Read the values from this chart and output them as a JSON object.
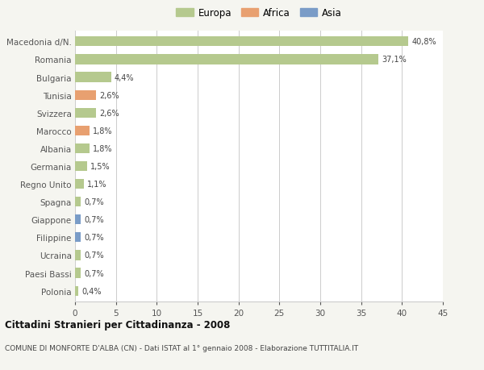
{
  "categories": [
    "Polonia",
    "Paesi Bassi",
    "Ucraina",
    "Filippine",
    "Giappone",
    "Spagna",
    "Regno Unito",
    "Germania",
    "Albania",
    "Marocco",
    "Svizzera",
    "Tunisia",
    "Bulgaria",
    "Romania",
    "Macedonia d/N."
  ],
  "values": [
    0.4,
    0.7,
    0.7,
    0.7,
    0.7,
    0.7,
    1.1,
    1.5,
    1.8,
    1.8,
    2.6,
    2.6,
    4.4,
    37.1,
    40.8
  ],
  "colors": [
    "#b5c98e",
    "#b5c98e",
    "#b5c98e",
    "#7a9cc7",
    "#7a9cc7",
    "#b5c98e",
    "#b5c98e",
    "#b5c98e",
    "#b5c98e",
    "#e8a070",
    "#b5c98e",
    "#e8a070",
    "#b5c98e",
    "#b5c98e",
    "#b5c98e"
  ],
  "labels": [
    "0,4%",
    "0,7%",
    "0,7%",
    "0,7%",
    "0,7%",
    "0,7%",
    "1,1%",
    "1,5%",
    "1,8%",
    "1,8%",
    "2,6%",
    "2,6%",
    "4,4%",
    "37,1%",
    "40,8%"
  ],
  "xlim": [
    0,
    45
  ],
  "xticks": [
    0,
    5,
    10,
    15,
    20,
    25,
    30,
    35,
    40,
    45
  ],
  "title": "Cittadini Stranieri per Cittadinanza - 2008",
  "subtitle": "COMUNE DI MONFORTE D'ALBA (CN) - Dati ISTAT al 1° gennaio 2008 - Elaborazione TUTTITALIA.IT",
  "legend_labels": [
    "Europa",
    "Africa",
    "Asia"
  ],
  "legend_colors": [
    "#b5c98e",
    "#e8a070",
    "#7a9cc7"
  ],
  "background_color": "#f5f5f0",
  "bar_bg_color": "#ffffff",
  "grid_color": "#cccccc"
}
